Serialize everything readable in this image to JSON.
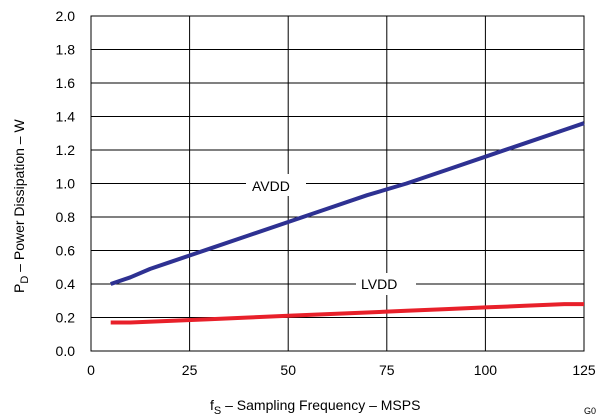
{
  "chart_data": {
    "type": "line",
    "x_ticks": [
      "0",
      "25",
      "50",
      "75",
      "100",
      "125"
    ],
    "y_ticks": [
      "0.0",
      "0.2",
      "0.4",
      "0.6",
      "0.8",
      "1.0",
      "1.2",
      "1.4",
      "1.6",
      "1.8",
      "2.0"
    ],
    "xlim": [
      0,
      125
    ],
    "ylim": [
      0,
      2.0
    ],
    "grid": true,
    "xlabel": {
      "main": "f",
      "sub": "S",
      "rest": " – Sampling Frequency – MSPS"
    },
    "ylabel": {
      "main": "P",
      "sub": "D",
      "rest": " – Power Dissipation – W"
    },
    "series": [
      {
        "name": "AVDD",
        "color": "#2e3192",
        "x": [
          5,
          10,
          15,
          20,
          25,
          30,
          40,
          50,
          60,
          70,
          80,
          90,
          100,
          110,
          120,
          125
        ],
        "values": [
          0.4,
          0.44,
          0.49,
          0.53,
          0.57,
          0.61,
          0.69,
          0.77,
          0.85,
          0.93,
          1.0,
          1.08,
          1.16,
          1.24,
          1.32,
          1.36
        ]
      },
      {
        "name": "LVDD",
        "color": "#e8202a",
        "x": [
          5,
          10,
          20,
          30,
          40,
          50,
          60,
          70,
          80,
          90,
          100,
          110,
          120,
          125
        ],
        "values": [
          0.17,
          0.17,
          0.18,
          0.19,
          0.2,
          0.21,
          0.22,
          0.23,
          0.24,
          0.25,
          0.26,
          0.27,
          0.28,
          0.28
        ]
      }
    ]
  },
  "footer": "G0"
}
